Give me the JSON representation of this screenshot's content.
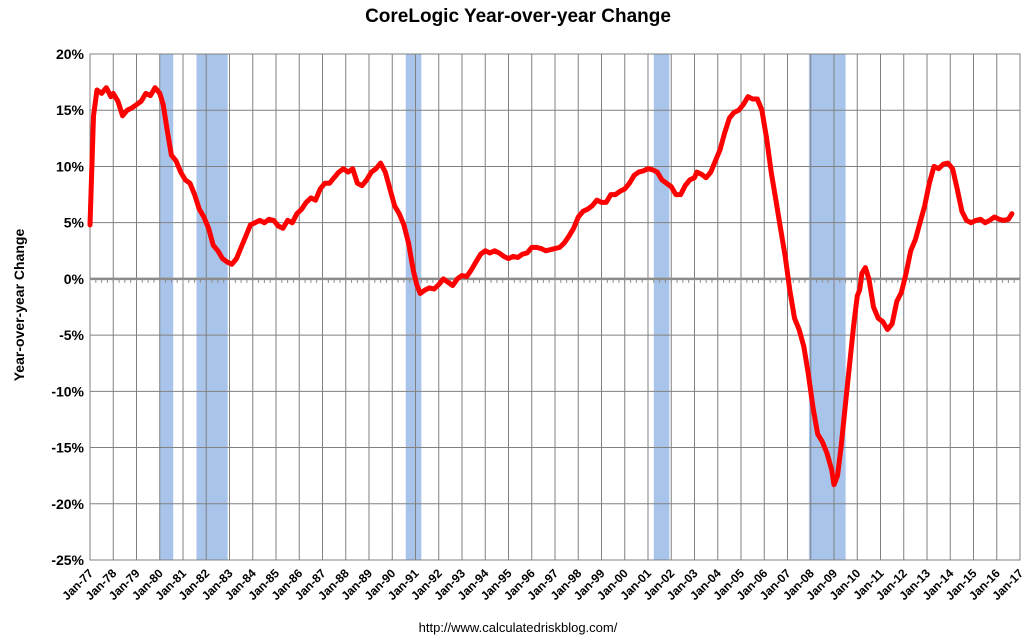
{
  "chart_data": {
    "type": "line",
    "title": "CoreLogic Year-over-year Change",
    "ylabel": "Year-over-year Change",
    "xlabel": "",
    "ylim": [
      -25,
      20
    ],
    "xlim": [
      1977.0,
      2017.0
    ],
    "grid": true,
    "y_ticks": [
      20,
      15,
      10,
      5,
      0,
      -5,
      -10,
      -15,
      -20,
      -25
    ],
    "y_tick_labels": [
      "20%",
      "15%",
      "10%",
      "5%",
      "0%",
      "-5%",
      "-10%",
      "-15%",
      "-20%",
      "-25%"
    ],
    "x_tick_labels": [
      "Jan-77",
      "Jan-78",
      "Jan-79",
      "Jan-80",
      "Jan-81",
      "Jan-82",
      "Jan-83",
      "Jan-84",
      "Jan-85",
      "Jan-86",
      "Jan-87",
      "Jan-88",
      "Jan-89",
      "Jan-90",
      "Jan-91",
      "Jan-92",
      "Jan-93",
      "Jan-94",
      "Jan-95",
      "Jan-96",
      "Jan-97",
      "Jan-98",
      "Jan-99",
      "Jan-00",
      "Jan-01",
      "Jan-02",
      "Jan-03",
      "Jan-04",
      "Jan-05",
      "Jan-06",
      "Jan-07",
      "Jan-08",
      "Jan-09",
      "Jan-10",
      "Jan-11",
      "Jan-12",
      "Jan-13",
      "Jan-14",
      "Jan-15",
      "Jan-16",
      "Jan-17"
    ],
    "recessions": [
      {
        "start": 1980.0,
        "end": 1980.58
      },
      {
        "start": 1981.58,
        "end": 1982.92
      },
      {
        "start": 1990.58,
        "end": 1991.25
      },
      {
        "start": 2001.25,
        "end": 2001.92
      },
      {
        "start": 2007.92,
        "end": 2009.5
      }
    ],
    "series": [
      {
        "line_color": "#ff0000",
        "points": [
          [
            1977.0,
            4.8
          ],
          [
            1977.15,
            14.5
          ],
          [
            1977.3,
            16.8
          ],
          [
            1977.5,
            16.5
          ],
          [
            1977.7,
            17.0
          ],
          [
            1977.9,
            16.2
          ],
          [
            1978.0,
            16.5
          ],
          [
            1978.2,
            15.8
          ],
          [
            1978.4,
            14.5
          ],
          [
            1978.6,
            15.0
          ],
          [
            1978.8,
            15.2
          ],
          [
            1979.0,
            15.5
          ],
          [
            1979.2,
            15.8
          ],
          [
            1979.4,
            16.5
          ],
          [
            1979.6,
            16.3
          ],
          [
            1979.8,
            17.0
          ],
          [
            1980.0,
            16.5
          ],
          [
            1980.15,
            15.5
          ],
          [
            1980.3,
            13.5
          ],
          [
            1980.5,
            11.0
          ],
          [
            1980.7,
            10.5
          ],
          [
            1980.9,
            9.5
          ],
          [
            1981.1,
            8.8
          ],
          [
            1981.3,
            8.5
          ],
          [
            1981.5,
            7.5
          ],
          [
            1981.7,
            6.2
          ],
          [
            1981.9,
            5.5
          ],
          [
            1982.1,
            4.5
          ],
          [
            1982.3,
            3.0
          ],
          [
            1982.5,
            2.5
          ],
          [
            1982.7,
            1.8
          ],
          [
            1982.9,
            1.5
          ],
          [
            1983.1,
            1.3
          ],
          [
            1983.3,
            1.8
          ],
          [
            1983.5,
            2.8
          ],
          [
            1983.7,
            3.8
          ],
          [
            1983.9,
            4.8
          ],
          [
            1984.1,
            5.0
          ],
          [
            1984.3,
            5.2
          ],
          [
            1984.5,
            5.0
          ],
          [
            1984.7,
            5.3
          ],
          [
            1984.9,
            5.2
          ],
          [
            1985.1,
            4.7
          ],
          [
            1985.3,
            4.5
          ],
          [
            1985.5,
            5.2
          ],
          [
            1985.7,
            5.0
          ],
          [
            1985.9,
            5.8
          ],
          [
            1986.1,
            6.2
          ],
          [
            1986.3,
            6.8
          ],
          [
            1986.5,
            7.2
          ],
          [
            1986.7,
            7.0
          ],
          [
            1986.9,
            8.0
          ],
          [
            1987.1,
            8.5
          ],
          [
            1987.3,
            8.5
          ],
          [
            1987.5,
            9.0
          ],
          [
            1987.7,
            9.5
          ],
          [
            1987.9,
            9.8
          ],
          [
            1988.1,
            9.5
          ],
          [
            1988.3,
            9.8
          ],
          [
            1988.5,
            8.5
          ],
          [
            1988.7,
            8.3
          ],
          [
            1988.9,
            8.8
          ],
          [
            1989.1,
            9.5
          ],
          [
            1989.3,
            9.8
          ],
          [
            1989.5,
            10.3
          ],
          [
            1989.7,
            9.5
          ],
          [
            1989.9,
            8.0
          ],
          [
            1990.1,
            6.5
          ],
          [
            1990.3,
            5.8
          ],
          [
            1990.5,
            4.8
          ],
          [
            1990.7,
            3.2
          ],
          [
            1990.9,
            0.8
          ],
          [
            1991.05,
            -0.5
          ],
          [
            1991.2,
            -1.3
          ],
          [
            1991.4,
            -1.0
          ],
          [
            1991.6,
            -0.8
          ],
          [
            1991.8,
            -0.9
          ],
          [
            1992.0,
            -0.5
          ],
          [
            1992.2,
            0.0
          ],
          [
            1992.4,
            -0.3
          ],
          [
            1992.6,
            -0.6
          ],
          [
            1992.8,
            0.0
          ],
          [
            1993.0,
            0.3
          ],
          [
            1993.2,
            0.2
          ],
          [
            1993.4,
            0.8
          ],
          [
            1993.6,
            1.5
          ],
          [
            1993.8,
            2.2
          ],
          [
            1994.0,
            2.5
          ],
          [
            1994.2,
            2.3
          ],
          [
            1994.4,
            2.5
          ],
          [
            1994.6,
            2.3
          ],
          [
            1994.8,
            2.0
          ],
          [
            1995.0,
            1.8
          ],
          [
            1995.2,
            2.0
          ],
          [
            1995.4,
            1.9
          ],
          [
            1995.6,
            2.2
          ],
          [
            1995.8,
            2.3
          ],
          [
            1996.0,
            2.8
          ],
          [
            1996.2,
            2.8
          ],
          [
            1996.4,
            2.7
          ],
          [
            1996.6,
            2.5
          ],
          [
            1996.8,
            2.6
          ],
          [
            1997.0,
            2.7
          ],
          [
            1997.2,
            2.8
          ],
          [
            1997.4,
            3.2
          ],
          [
            1997.6,
            3.8
          ],
          [
            1997.8,
            4.5
          ],
          [
            1998.0,
            5.5
          ],
          [
            1998.2,
            6.0
          ],
          [
            1998.4,
            6.2
          ],
          [
            1998.6,
            6.5
          ],
          [
            1998.8,
            7.0
          ],
          [
            1999.0,
            6.8
          ],
          [
            1999.2,
            6.8
          ],
          [
            1999.4,
            7.5
          ],
          [
            1999.6,
            7.5
          ],
          [
            1999.8,
            7.8
          ],
          [
            2000.0,
            8.0
          ],
          [
            2000.2,
            8.5
          ],
          [
            2000.4,
            9.2
          ],
          [
            2000.6,
            9.5
          ],
          [
            2000.8,
            9.6
          ],
          [
            2001.0,
            9.8
          ],
          [
            2001.2,
            9.7
          ],
          [
            2001.4,
            9.5
          ],
          [
            2001.6,
            8.8
          ],
          [
            2001.8,
            8.5
          ],
          [
            2002.0,
            8.2
          ],
          [
            2002.2,
            7.5
          ],
          [
            2002.4,
            7.5
          ],
          [
            2002.6,
            8.3
          ],
          [
            2002.8,
            8.8
          ],
          [
            2003.0,
            9.0
          ],
          [
            2003.1,
            9.5
          ],
          [
            2003.3,
            9.3
          ],
          [
            2003.5,
            9.0
          ],
          [
            2003.7,
            9.5
          ],
          [
            2003.9,
            10.5
          ],
          [
            2004.1,
            11.5
          ],
          [
            2004.3,
            13.0
          ],
          [
            2004.5,
            14.3
          ],
          [
            2004.7,
            14.8
          ],
          [
            2004.9,
            15.0
          ],
          [
            2005.1,
            15.5
          ],
          [
            2005.3,
            16.2
          ],
          [
            2005.5,
            16.0
          ],
          [
            2005.7,
            16.0
          ],
          [
            2005.9,
            15.0
          ],
          [
            2006.1,
            12.5
          ],
          [
            2006.3,
            9.5
          ],
          [
            2006.5,
            7.0
          ],
          [
            2006.7,
            4.5
          ],
          [
            2006.9,
            2.0
          ],
          [
            2007.1,
            -1.0
          ],
          [
            2007.3,
            -3.5
          ],
          [
            2007.5,
            -4.5
          ],
          [
            2007.7,
            -6.0
          ],
          [
            2007.9,
            -8.5
          ],
          [
            2008.1,
            -11.5
          ],
          [
            2008.3,
            -13.8
          ],
          [
            2008.5,
            -14.5
          ],
          [
            2008.7,
            -15.5
          ],
          [
            2008.9,
            -17.0
          ],
          [
            2009.0,
            -18.3
          ],
          [
            2009.15,
            -17.5
          ],
          [
            2009.3,
            -15.0
          ],
          [
            2009.5,
            -11.0
          ],
          [
            2009.7,
            -7.0
          ],
          [
            2009.85,
            -4.0
          ],
          [
            2010.0,
            -1.5
          ],
          [
            2010.1,
            -1.0
          ],
          [
            2010.2,
            0.5
          ],
          [
            2010.35,
            1.0
          ],
          [
            2010.5,
            0.0
          ],
          [
            2010.7,
            -2.5
          ],
          [
            2010.9,
            -3.5
          ],
          [
            2011.1,
            -3.8
          ],
          [
            2011.3,
            -4.5
          ],
          [
            2011.5,
            -4.0
          ],
          [
            2011.7,
            -2.0
          ],
          [
            2011.9,
            -1.2
          ],
          [
            2012.1,
            0.5
          ],
          [
            2012.3,
            2.5
          ],
          [
            2012.5,
            3.5
          ],
          [
            2012.7,
            5.0
          ],
          [
            2012.9,
            6.5
          ],
          [
            2013.1,
            8.5
          ],
          [
            2013.3,
            10.0
          ],
          [
            2013.5,
            9.8
          ],
          [
            2013.7,
            10.2
          ],
          [
            2013.9,
            10.3
          ],
          [
            2014.1,
            9.8
          ],
          [
            2014.3,
            8.0
          ],
          [
            2014.5,
            6.0
          ],
          [
            2014.7,
            5.2
          ],
          [
            2014.9,
            5.0
          ],
          [
            2015.1,
            5.2
          ],
          [
            2015.3,
            5.3
          ],
          [
            2015.5,
            5.0
          ],
          [
            2015.7,
            5.2
          ],
          [
            2015.9,
            5.5
          ],
          [
            2016.1,
            5.3
          ],
          [
            2016.3,
            5.2
          ],
          [
            2016.5,
            5.3
          ],
          [
            2016.65,
            5.8
          ]
        ]
      }
    ]
  },
  "footer": {
    "url": "http://www.calculatedriskblog.com/"
  },
  "colors": {
    "line": "#ff0000",
    "recession": "#a9c4eb",
    "grid": "#808080",
    "zero_line": "#8c8c8c"
  }
}
